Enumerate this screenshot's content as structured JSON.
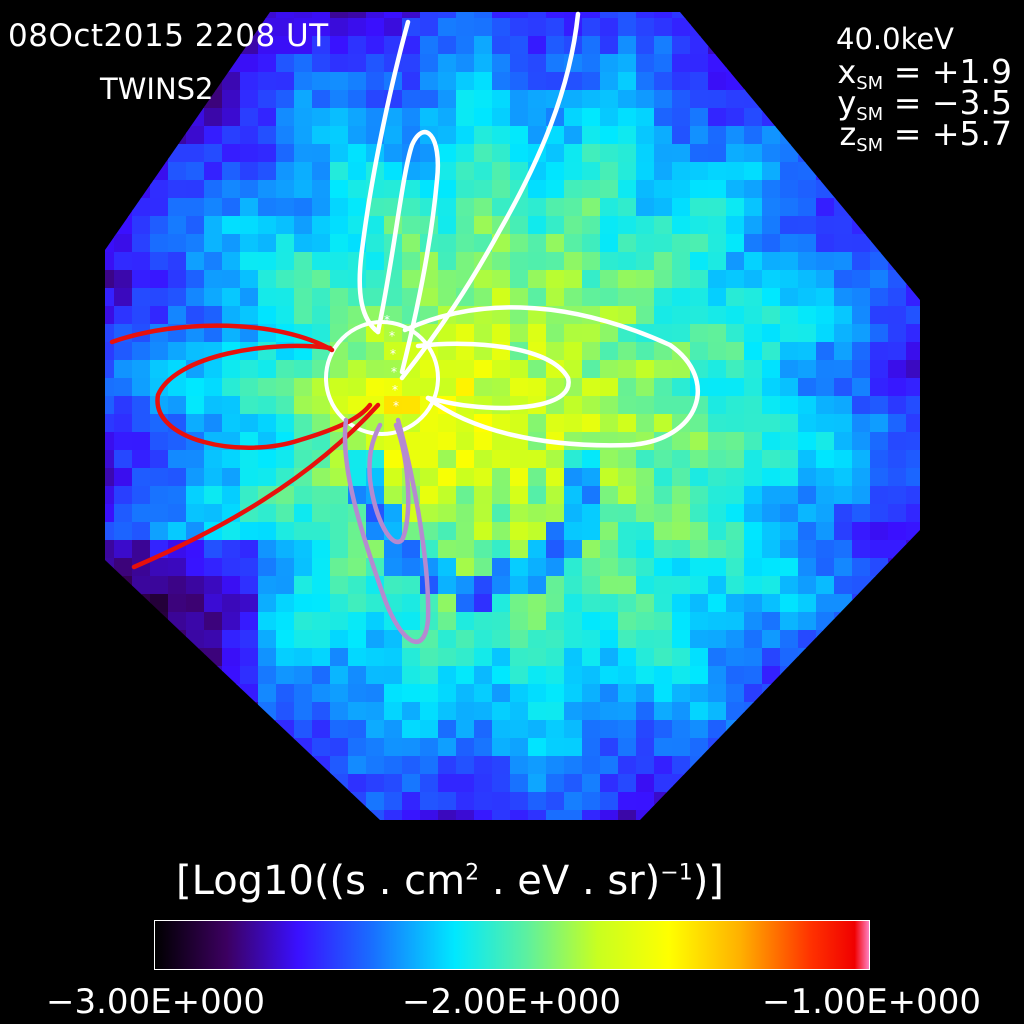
{
  "header": {
    "datetime": "08Oct2015 2208 UT",
    "satellite": "TWINS2",
    "energy": "40.0keV"
  },
  "position": [
    {
      "var": "x",
      "sub": "SM",
      "value": "= +1.9"
    },
    {
      "var": "y",
      "sub": "SM",
      "value": "= −3.5"
    },
    {
      "var": "z",
      "sub": "SM",
      "value": "= +5.7"
    }
  ],
  "colorbar": {
    "title_prefix": "[Log10((s . cm",
    "title_sup1": "2",
    "title_mid": " . eV . sr)",
    "title_sup2": "−1",
    "title_suffix": ")]",
    "ticks": [
      "−3.00E+000",
      "−2.00E+000",
      "−1.00E+000"
    ],
    "min": -3.0,
    "max": -1.0
  },
  "colors": {
    "background": "#000000",
    "field_line_white": "#ffffff",
    "field_line_red": "#e8100c",
    "field_line_purple": "#b58ad0"
  }
}
